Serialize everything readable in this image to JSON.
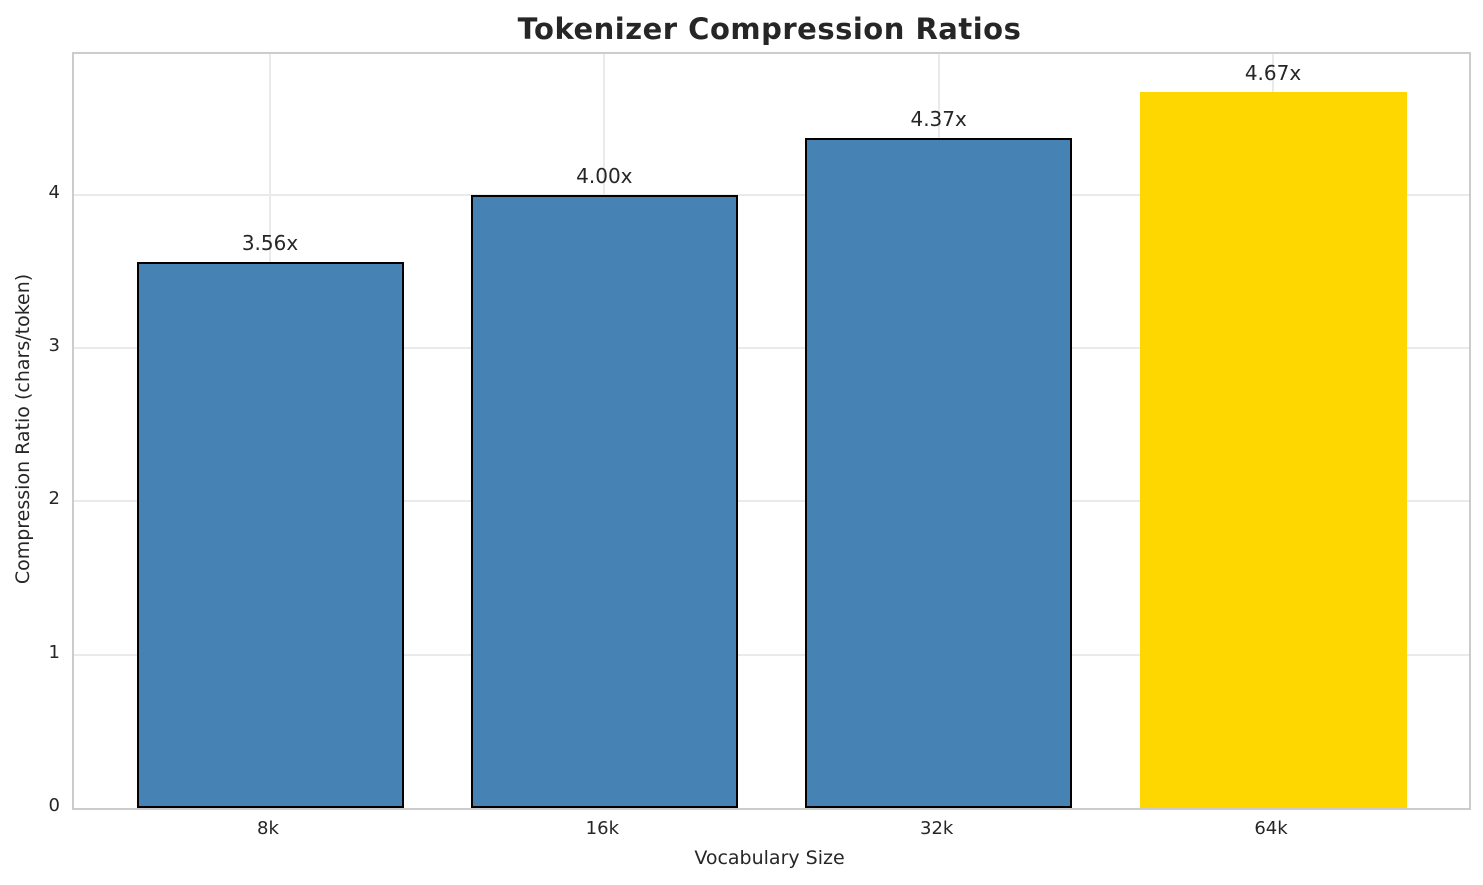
{
  "chart_data": {
    "type": "bar",
    "title": "Tokenizer Compression Ratios",
    "xlabel": "Vocabulary Size",
    "ylabel": "Compression Ratio (chars/token)",
    "categories": [
      "8k",
      "16k",
      "32k",
      "64k"
    ],
    "values": [
      3.56,
      4.0,
      4.37,
      4.67
    ],
    "bar_labels": [
      "3.56x",
      "4.00x",
      "4.37x",
      "4.67x"
    ],
    "bar_colors": [
      "#4682B4",
      "#4682B4",
      "#4682B4",
      "#FFD700"
    ],
    "bar_edge_colors": [
      "#000000",
      "#000000",
      "#000000",
      "none"
    ],
    "highlighted_category": "64k",
    "ylim": [
      0,
      4.92
    ],
    "yticks": [
      0,
      1,
      2,
      3,
      4
    ],
    "grid": true,
    "legend_position": "none"
  },
  "style": {
    "background_color": "#ffffff",
    "primary_bar_color": "#4682B4",
    "highlight_bar_color": "#FFD700",
    "bar_edge_color": "#000000",
    "grid_color": "#eaeaea",
    "spine_color": "#cccccc",
    "text_color": "#262626"
  }
}
